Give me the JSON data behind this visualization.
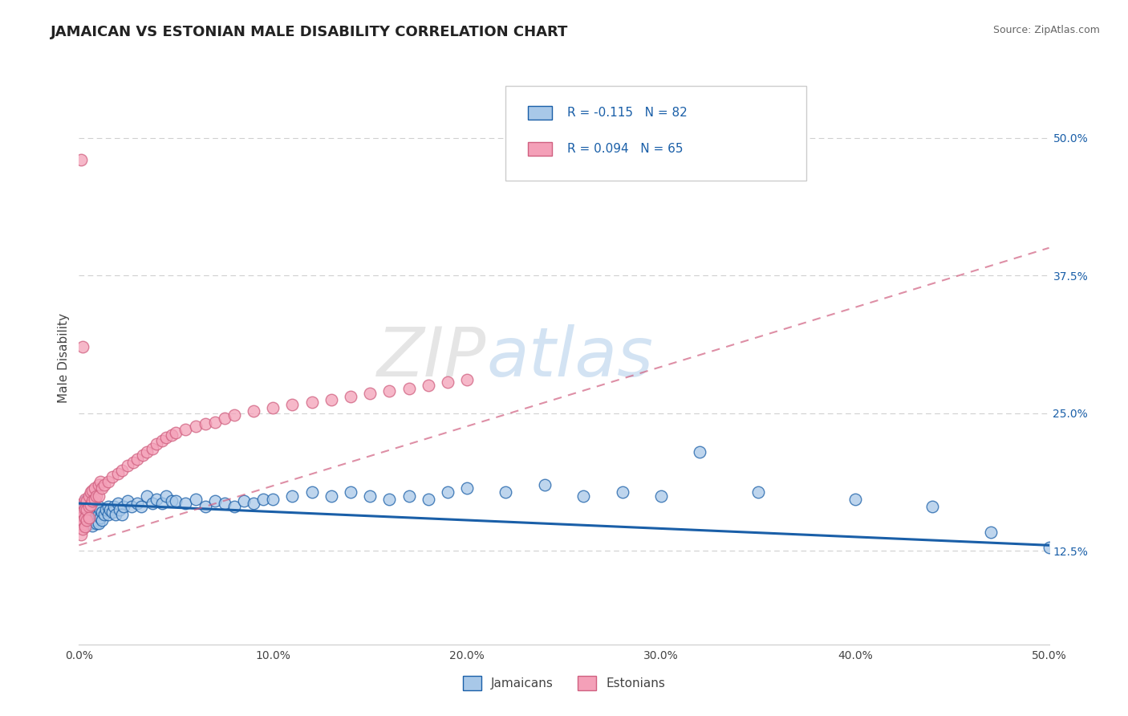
{
  "title": "JAMAICAN VS ESTONIAN MALE DISABILITY CORRELATION CHART",
  "source_text": "Source: ZipAtlas.com",
  "ylabel": "Male Disability",
  "legend_label1": "Jamaicans",
  "legend_label2": "Estonians",
  "R1": -0.115,
  "N1": 82,
  "R2": 0.094,
  "N2": 65,
  "color1": "#a8c8e8",
  "color2": "#f4a0b8",
  "color1_line": "#1a5fa8",
  "color2_line": "#d06080",
  "xmin": 0.0,
  "xmax": 0.5,
  "ymin": 0.04,
  "ymax": 0.56,
  "xticks": [
    0.0,
    0.1,
    0.2,
    0.3,
    0.4,
    0.5
  ],
  "xticklabels": [
    "0.0%",
    "10.0%",
    "20.0%",
    "30.0%",
    "40.0%",
    "50.0%"
  ],
  "yticks_right": [
    0.125,
    0.25,
    0.375,
    0.5
  ],
  "yticklabels_right": [
    "12.5%",
    "25.0%",
    "37.5%",
    "50.0%"
  ],
  "watermark_zip": "ZIP",
  "watermark_atlas": "atlas",
  "title_fontsize": 13,
  "axis_label_fontsize": 11,
  "tick_fontsize": 10,
  "background_color": "#ffffff",
  "grid_color": "#d0d0d0",
  "jamaicans_x": [
    0.001,
    0.002,
    0.002,
    0.003,
    0.003,
    0.003,
    0.004,
    0.004,
    0.005,
    0.005,
    0.005,
    0.006,
    0.006,
    0.006,
    0.007,
    0.007,
    0.007,
    0.008,
    0.008,
    0.009,
    0.009,
    0.01,
    0.01,
    0.01,
    0.011,
    0.011,
    0.012,
    0.012,
    0.013,
    0.014,
    0.015,
    0.015,
    0.016,
    0.017,
    0.018,
    0.019,
    0.02,
    0.021,
    0.022,
    0.023,
    0.025,
    0.027,
    0.03,
    0.032,
    0.035,
    0.038,
    0.04,
    0.043,
    0.045,
    0.048,
    0.05,
    0.055,
    0.06,
    0.065,
    0.07,
    0.075,
    0.08,
    0.085,
    0.09,
    0.095,
    0.1,
    0.11,
    0.12,
    0.13,
    0.14,
    0.15,
    0.16,
    0.17,
    0.18,
    0.19,
    0.2,
    0.22,
    0.24,
    0.26,
    0.28,
    0.3,
    0.32,
    0.35,
    0.4,
    0.44,
    0.47,
    0.5
  ],
  "jamaicans_y": [
    0.165,
    0.162,
    0.158,
    0.17,
    0.155,
    0.148,
    0.163,
    0.157,
    0.168,
    0.16,
    0.152,
    0.165,
    0.158,
    0.15,
    0.162,
    0.155,
    0.148,
    0.16,
    0.153,
    0.158,
    0.15,
    0.165,
    0.158,
    0.15,
    0.162,
    0.155,
    0.16,
    0.153,
    0.158,
    0.162,
    0.165,
    0.158,
    0.162,
    0.16,
    0.165,
    0.158,
    0.168,
    0.162,
    0.158,
    0.165,
    0.17,
    0.165,
    0.168,
    0.165,
    0.175,
    0.168,
    0.172,
    0.168,
    0.175,
    0.17,
    0.17,
    0.168,
    0.172,
    0.165,
    0.17,
    0.168,
    0.165,
    0.17,
    0.168,
    0.172,
    0.172,
    0.175,
    0.178,
    0.175,
    0.178,
    0.175,
    0.172,
    0.175,
    0.172,
    0.178,
    0.182,
    0.178,
    0.185,
    0.175,
    0.178,
    0.175,
    0.215,
    0.178,
    0.172,
    0.165,
    0.142,
    0.128
  ],
  "estonians_x": [
    0.001,
    0.001,
    0.001,
    0.001,
    0.002,
    0.002,
    0.002,
    0.002,
    0.003,
    0.003,
    0.003,
    0.003,
    0.004,
    0.004,
    0.004,
    0.005,
    0.005,
    0.005,
    0.006,
    0.006,
    0.007,
    0.007,
    0.008,
    0.008,
    0.009,
    0.01,
    0.01,
    0.011,
    0.012,
    0.013,
    0.015,
    0.017,
    0.02,
    0.022,
    0.025,
    0.028,
    0.03,
    0.033,
    0.035,
    0.038,
    0.04,
    0.043,
    0.045,
    0.048,
    0.05,
    0.055,
    0.06,
    0.065,
    0.07,
    0.075,
    0.08,
    0.09,
    0.1,
    0.11,
    0.12,
    0.13,
    0.14,
    0.15,
    0.16,
    0.17,
    0.18,
    0.19,
    0.2,
    0.001,
    0.002
  ],
  "estonians_y": [
    0.16,
    0.155,
    0.148,
    0.14,
    0.168,
    0.16,
    0.152,
    0.145,
    0.172,
    0.163,
    0.155,
    0.147,
    0.17,
    0.162,
    0.153,
    0.175,
    0.165,
    0.155,
    0.178,
    0.167,
    0.18,
    0.17,
    0.182,
    0.172,
    0.175,
    0.185,
    0.175,
    0.188,
    0.182,
    0.185,
    0.188,
    0.192,
    0.195,
    0.198,
    0.202,
    0.205,
    0.208,
    0.212,
    0.215,
    0.218,
    0.222,
    0.225,
    0.228,
    0.23,
    0.232,
    0.235,
    0.238,
    0.24,
    0.242,
    0.245,
    0.248,
    0.252,
    0.255,
    0.258,
    0.26,
    0.262,
    0.265,
    0.268,
    0.27,
    0.272,
    0.275,
    0.278,
    0.28,
    0.48,
    0.31
  ]
}
